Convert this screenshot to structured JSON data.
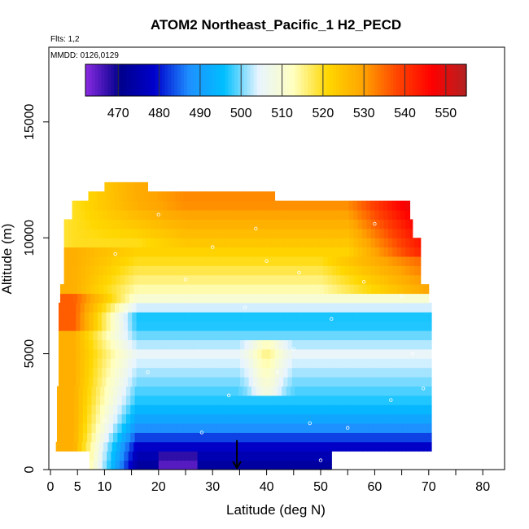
{
  "chart_data": {
    "type": "heatmap",
    "title": "ATOM2 Northeast_Pacific_1 H2_PECD",
    "flights_note": "Flts: 1,2",
    "dates_note": "MMDD: 0126,0129",
    "xlabel": "Latitude (deg N)",
    "ylabel": "Altitude (m)",
    "xlim": [
      0,
      84
    ],
    "ylim": [
      0,
      17500
    ],
    "x_ticks": [
      0,
      5,
      10,
      20,
      30,
      40,
      50,
      60,
      70,
      80
    ],
    "x_minor_ticks": [
      15,
      25,
      35,
      45,
      55,
      65,
      75,
      85
    ],
    "y_ticks": [
      0,
      5000,
      10000,
      15000
    ],
    "colorbar": {
      "range": [
        462,
        555
      ],
      "ticks": [
        470,
        480,
        490,
        500,
        510,
        520,
        530,
        540,
        550
      ],
      "colors": [
        "#8a2be2",
        "#00008b",
        "#0000cd",
        "#1e90ff",
        "#00bfff",
        "#e8f4ff",
        "#ffffc0",
        "#ffd700",
        "#ffa500",
        "#ff4500",
        "#ff0000",
        "#b22222"
      ]
    },
    "arrow_marker": {
      "x": 34.5,
      "y": 500
    },
    "grid": false,
    "legend_position": "top"
  }
}
